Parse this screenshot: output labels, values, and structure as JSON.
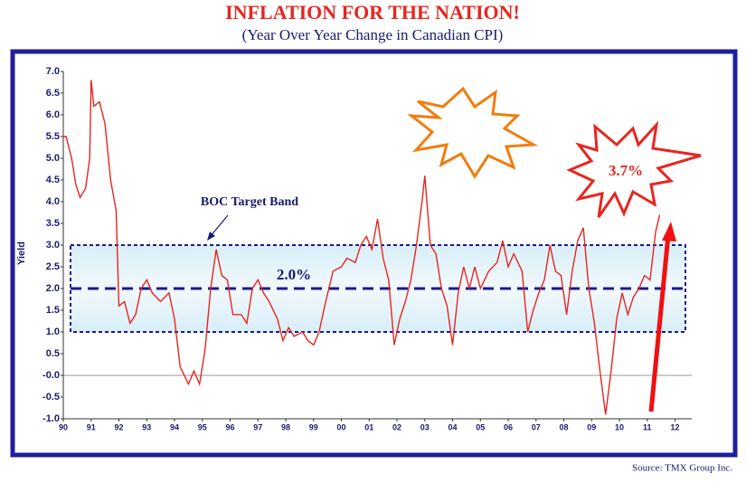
{
  "chart_data": {
    "type": "line",
    "title": "INFLATION FOR THE NATION!",
    "subtitle": "(Year Over Year Change in Canadian CPI)",
    "y_label": "Yield",
    "source": "Source: TMX Group Inc.",
    "annotations": [
      "BOC Target Band",
      "2.0%",
      "3.7%"
    ],
    "target_band": [
      1,
      3
    ],
    "target_line": 2,
    "xlim": [
      1990,
      2012.6
    ],
    "xticks": [
      {
        "value": 1990,
        "label": "90"
      },
      {
        "value": 1991,
        "label": "91"
      },
      {
        "value": 1992,
        "label": "92"
      },
      {
        "value": 1993,
        "label": "93"
      },
      {
        "value": 1994,
        "label": "94"
      },
      {
        "value": 1995,
        "label": "95"
      },
      {
        "value": 1996,
        "label": "96"
      },
      {
        "value": 1997,
        "label": "97"
      },
      {
        "value": 1998,
        "label": "98"
      },
      {
        "value": 1999,
        "label": "99"
      },
      {
        "value": 2000,
        "label": "00"
      },
      {
        "value": 2001,
        "label": "01"
      },
      {
        "value": 2002,
        "label": "02"
      },
      {
        "value": 2003,
        "label": "03"
      },
      {
        "value": 2004,
        "label": "04"
      },
      {
        "value": 2005,
        "label": "05"
      },
      {
        "value": 2006,
        "label": "06"
      },
      {
        "value": 2007,
        "label": "07"
      },
      {
        "value": 2008,
        "label": "08"
      },
      {
        "value": 2009,
        "label": "09"
      },
      {
        "value": 2010,
        "label": "10"
      },
      {
        "value": 2011,
        "label": "11"
      },
      {
        "value": 2012,
        "label": "12"
      }
    ],
    "ylim": [
      -1,
      7
    ],
    "yticks": [
      {
        "value": 7,
        "label": "7.0"
      },
      {
        "value": 6.5,
        "label": "6.5"
      },
      {
        "value": 6,
        "label": "6.0"
      },
      {
        "value": 5.5,
        "label": "5.5"
      },
      {
        "value": 5,
        "label": "5.0"
      },
      {
        "value": 4.5,
        "label": "4.5"
      },
      {
        "value": 4,
        "label": "4.0"
      },
      {
        "value": 3.5,
        "label": "3.5"
      },
      {
        "value": 3,
        "label": "3.0"
      },
      {
        "value": 2.5,
        "label": "2.5"
      },
      {
        "value": 2,
        "label": "2.0"
      },
      {
        "value": 1.5,
        "label": "1.5"
      },
      {
        "value": 1,
        "label": "1.0"
      },
      {
        "value": 0.5,
        "label": "0.5"
      },
      {
        "value": 0,
        "label": "-0.0"
      },
      {
        "value": -0.5,
        "label": "-0.5"
      },
      {
        "value": -1,
        "label": "-1.0"
      }
    ],
    "series": [
      {
        "name": "Canadian CPI",
        "color": "#e8251f",
        "x": [
          1990.0,
          1990.1,
          1990.3,
          1990.45,
          1990.6,
          1990.8,
          1990.95,
          1991.0,
          1991.1,
          1991.3,
          1991.5,
          1991.7,
          1991.9,
          1992.0,
          1992.2,
          1992.4,
          1992.6,
          1992.8,
          1993.0,
          1993.2,
          1993.5,
          1993.8,
          1994.0,
          1994.2,
          1994.5,
          1994.7,
          1994.9,
          1995.1,
          1995.3,
          1995.5,
          1995.7,
          1995.9,
          1996.1,
          1996.4,
          1996.6,
          1996.8,
          1997.0,
          1997.2,
          1997.4,
          1997.7,
          1997.9,
          1998.1,
          1998.3,
          1998.6,
          1998.8,
          1999.0,
          1999.2,
          1999.4,
          1999.7,
          2000.0,
          2000.2,
          2000.5,
          2000.7,
          2000.9,
          2001.1,
          2001.3,
          2001.5,
          2001.7,
          2001.9,
          2002.1,
          2002.3,
          2002.5,
          2002.7,
          2002.9,
          2003.0,
          2003.2,
          2003.4,
          2003.6,
          2003.8,
          2004.0,
          2004.2,
          2004.4,
          2004.6,
          2004.8,
          2005.0,
          2005.3,
          2005.6,
          2005.8,
          2006.0,
          2006.2,
          2006.5,
          2006.7,
          2006.9,
          2007.1,
          2007.3,
          2007.5,
          2007.7,
          2007.9,
          2008.1,
          2008.3,
          2008.5,
          2008.7,
          2008.9,
          2009.1,
          2009.3,
          2009.5,
          2009.7,
          2009.9,
          2010.1,
          2010.3,
          2010.5,
          2010.7,
          2010.9,
          2011.1,
          2011.3,
          2011.45
        ],
        "values": [
          5.5,
          5.5,
          5.0,
          4.4,
          4.1,
          4.3,
          5.0,
          6.8,
          6.2,
          6.3,
          5.8,
          4.5,
          3.8,
          1.6,
          1.7,
          1.2,
          1.4,
          2.0,
          2.2,
          1.9,
          1.7,
          1.9,
          1.3,
          0.2,
          -0.2,
          0.1,
          -0.2,
          0.6,
          2.0,
          2.9,
          2.3,
          2.2,
          1.4,
          1.4,
          1.2,
          2.0,
          2.2,
          1.9,
          1.7,
          1.3,
          0.8,
          1.1,
          0.9,
          1.0,
          0.8,
          0.7,
          1.0,
          1.6,
          2.4,
          2.5,
          2.7,
          2.6,
          3.0,
          3.2,
          2.9,
          3.6,
          2.7,
          2.2,
          0.7,
          1.3,
          1.7,
          2.2,
          3.0,
          4.0,
          4.6,
          3.0,
          2.8,
          2.0,
          1.6,
          0.7,
          1.9,
          2.5,
          2.0,
          2.5,
          2.0,
          2.4,
          2.6,
          3.1,
          2.5,
          2.8,
          2.4,
          1.0,
          1.5,
          1.9,
          2.2,
          3.0,
          2.4,
          2.3,
          1.4,
          2.4,
          3.1,
          3.4,
          2.0,
          1.2,
          0.1,
          -0.9,
          0.1,
          1.3,
          1.9,
          1.4,
          1.8,
          2.0,
          2.3,
          2.2,
          3.3,
          3.7
        ]
      }
    ]
  }
}
